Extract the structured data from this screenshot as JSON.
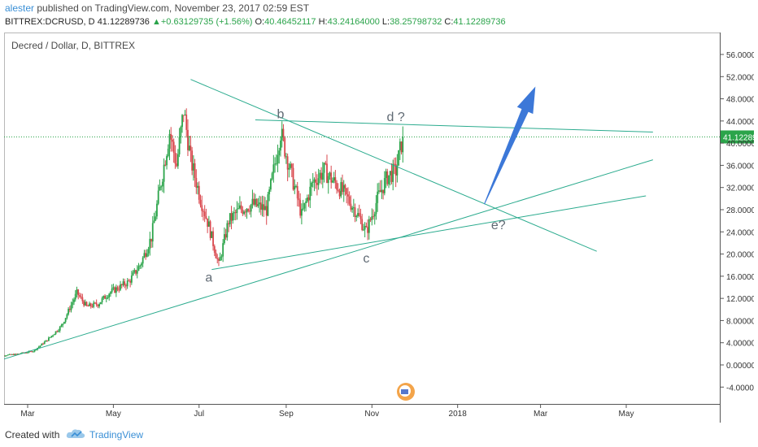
{
  "header": {
    "author": "alester",
    "published_text": " published on TradingView.com, November 23, 2017 02:59 EST",
    "symbol": "BITTREX:DCRUSD, D",
    "last": "41.12289736",
    "change": "+0.63129735 (+1.56%)",
    "o_label": "O:",
    "o_value": "40.46452117",
    "h_label": "H:",
    "h_value": "43.24164000",
    "l_label": "L:",
    "l_value": "38.25798732",
    "c_label": "C:",
    "c_value": "41.12289736"
  },
  "footer": {
    "created_with": "Created with",
    "brand": "TradingView"
  },
  "colors": {
    "up": "#2ba44a",
    "down": "#d9474d",
    "trend": "#2bab8e",
    "arrow": "#3c78d8",
    "axis": "#555555",
    "label": "#606a74",
    "price_tag": "#2ba44a"
  },
  "chart_data": {
    "type": "candlestick",
    "title": "Decred / Dollar, D, BITTREX",
    "x_ticks": [
      "Mar",
      "May",
      "Jul",
      "Sep",
      "Nov",
      "2018",
      "Mar",
      "May"
    ],
    "x_tick_dates": [
      "2017-03-01",
      "2017-05-01",
      "2017-07-01",
      "2017-09-01",
      "2017-11-01",
      "2018-01-01",
      "2018-03-01",
      "2018-05-01"
    ],
    "ylim": [
      -6,
      58
    ],
    "y_ticks": [
      "56.00000000",
      "52.00000000",
      "48.00000000",
      "44.00000000",
      "40.00000000",
      "36.00000000",
      "32.00000000",
      "28.00000000",
      "24.00000000",
      "20.00000000",
      "16.00000000",
      "12.00000000",
      "8.00000000",
      "4.00000000",
      "0.00000000",
      "-4.00000000"
    ],
    "y_tick_values": [
      56,
      52,
      48,
      44,
      40,
      36,
      32,
      28,
      24,
      20,
      16,
      12,
      8,
      4,
      0,
      -4
    ],
    "last_price": 41.12289736,
    "last_price_label": "41.12289736",
    "price_path": [
      [
        "2017-02-05",
        1.6
      ],
      [
        "2017-02-20",
        1.9
      ],
      [
        "2017-03-05",
        2.5
      ],
      [
        "2017-03-15",
        4.5
      ],
      [
        "2017-03-25",
        7
      ],
      [
        "2017-04-05",
        13
      ],
      [
        "2017-04-12",
        10.5
      ],
      [
        "2017-04-20",
        11
      ],
      [
        "2017-04-28",
        13
      ],
      [
        "2017-05-05",
        14
      ],
      [
        "2017-05-12",
        15
      ],
      [
        "2017-05-20",
        18
      ],
      [
        "2017-05-28",
        23
      ],
      [
        "2017-06-04",
        33
      ],
      [
        "2017-06-10",
        42
      ],
      [
        "2017-06-15",
        36
      ],
      [
        "2017-06-20",
        46
      ],
      [
        "2017-06-25",
        37
      ],
      [
        "2017-07-02",
        30
      ],
      [
        "2017-07-08",
        25
      ],
      [
        "2017-07-15",
        18
      ],
      [
        "2017-07-22",
        26
      ],
      [
        "2017-07-30",
        28
      ],
      [
        "2017-08-08",
        29
      ],
      [
        "2017-08-18",
        28
      ],
      [
        "2017-08-28",
        42
      ],
      [
        "2017-09-05",
        34
      ],
      [
        "2017-09-12",
        27
      ],
      [
        "2017-09-20",
        33
      ],
      [
        "2017-09-28",
        35
      ],
      [
        "2017-10-05",
        33
      ],
      [
        "2017-10-12",
        31
      ],
      [
        "2017-10-20",
        28
      ],
      [
        "2017-10-28",
        24
      ],
      [
        "2017-11-05",
        30
      ],
      [
        "2017-11-12",
        34
      ],
      [
        "2017-11-18",
        35
      ],
      [
        "2017-11-23",
        41.1
      ]
    ],
    "trendlines": [
      {
        "from": [
          "2017-06-25",
          51.5
        ],
        "to": [
          "2018-04-10",
          20.5
        ]
      },
      {
        "from": [
          "2017-08-10",
          44.2
        ],
        "to": [
          "2018-05-20",
          42.0
        ]
      },
      {
        "from": [
          "2017-07-10",
          17.2
        ],
        "to": [
          "2018-05-15",
          30.5
        ]
      },
      {
        "from": [
          "2017-02-05",
          0.5
        ],
        "to": [
          "2018-05-20",
          37.0
        ]
      }
    ],
    "arrow": {
      "from": [
        "2018-01-20",
        29
      ],
      "to": [
        "2018-02-25",
        50
      ]
    },
    "annotations": [
      {
        "text": "a",
        "date": "2017-07-08",
        "value": 15
      },
      {
        "text": "b",
        "date": "2017-08-28",
        "value": 44.5
      },
      {
        "text": "c",
        "date": "2017-10-28",
        "value": 18.5
      },
      {
        "text": "d ?",
        "date": "2017-11-18",
        "value": 44
      },
      {
        "text": "e?",
        "date": "2018-01-30",
        "value": 24.5
      }
    ]
  }
}
